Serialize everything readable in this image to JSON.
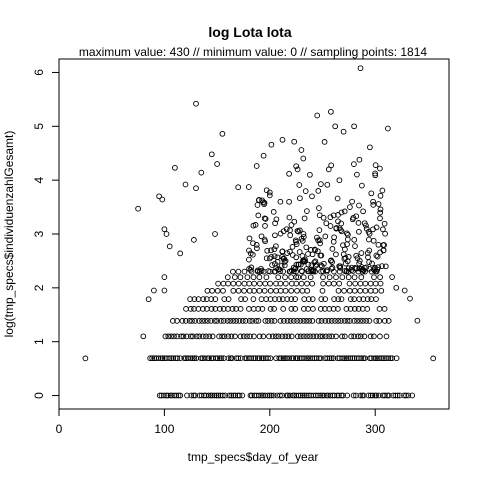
{
  "chart_data": {
    "type": "scatter",
    "title": "log Lota lota",
    "subtitle": "maximum value: 430  //  minimum value: 0  // sampling points: 1814",
    "xlabel": "tmp_specs$day_of_year",
    "ylabel": "log(tmp_specs$individuenzahlGesamt)",
    "xlim": [
      0,
      370
    ],
    "ylim": [
      -0.25,
      6.25
    ],
    "xticks": [
      0,
      100,
      200,
      300
    ],
    "yticks": [
      0,
      1,
      2,
      3,
      4,
      5,
      6
    ],
    "grid": false,
    "marker": "open-circle",
    "color": "#000000",
    "x": [
      25,
      355,
      80,
      85,
      90,
      75,
      95,
      98,
      100,
      102,
      100,
      105,
      110,
      100,
      115,
      120,
      130,
      135,
      128,
      145,
      155,
      130,
      150,
      170,
      148,
      165,
      182,
      195,
      200,
      212,
      225,
      245,
      230,
      258,
      262,
      252,
      270,
      280,
      286,
      300,
      312,
      285,
      295,
      276,
      266,
      246,
      238,
      205,
      210,
      228,
      240,
      256,
      268,
      282,
      298,
      305,
      215,
      232,
      243,
      251,
      263,
      274,
      290,
      303,
      310,
      225,
      235,
      248,
      258,
      272,
      288,
      301,
      308,
      316,
      320,
      328,
      333,
      340
    ],
    "y": [
      0.69,
      0.69,
      1.1,
      1.79,
      1.95,
      3.47,
      3.7,
      3.64,
      3.09,
      3.0,
      2.2,
      2.77,
      4.23,
      1.95,
      2.64,
      3.92,
      5.42,
      4.14,
      2.89,
      4.48,
      4.86,
      3.85,
      4.3,
      3.87,
      3.0,
      2.3,
      2.64,
      3.58,
      3.77,
      4.75,
      4.26,
      5.2,
      4.56,
      5.27,
      5.0,
      4.71,
      4.9,
      5.0,
      6.08,
      4.09,
      4.96,
      4.38,
      4.61,
      3.5,
      4.0,
      3.8,
      4.1,
      3.2,
      3.6,
      3.91,
      3.7,
      4.2,
      3.4,
      3.33,
      3.6,
      3.71,
      2.5,
      3.0,
      2.7,
      3.3,
      3.1,
      2.9,
      3.2,
      2.8,
      2.4,
      2.2,
      2.35,
      2.6,
      2.5,
      2.45,
      2.3,
      2.6,
      2.7,
      2.2,
      2.0,
      1.95,
      1.8,
      1.39
    ]
  }
}
